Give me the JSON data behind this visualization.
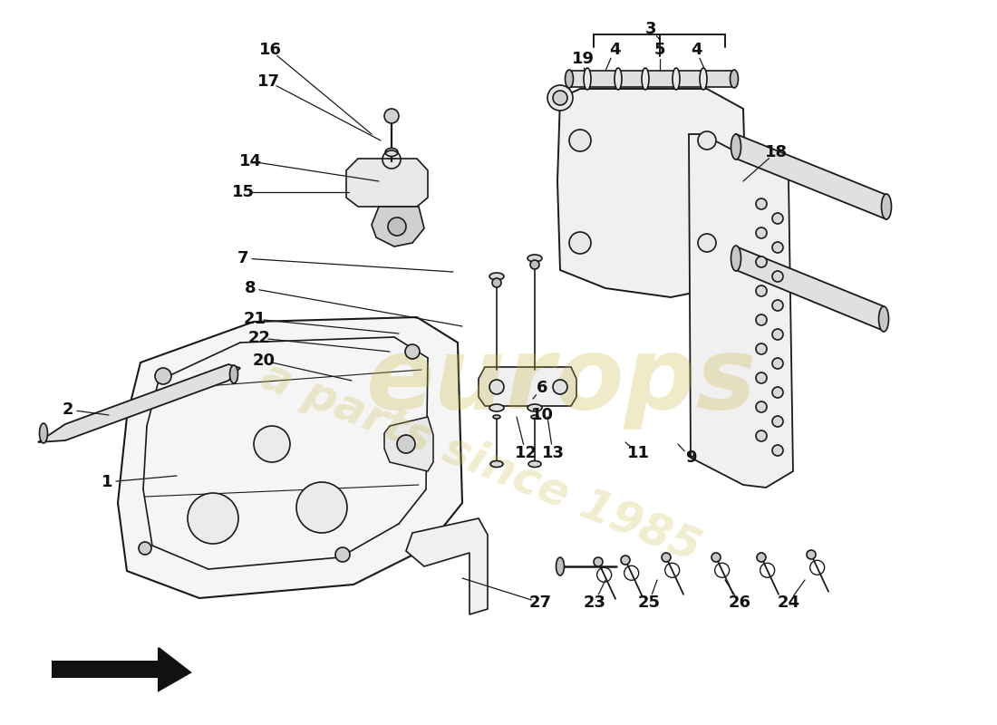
{
  "bg_color": "#ffffff",
  "line_color": "#1a1a1a",
  "label_color": "#111111",
  "wm_color1": "#c8b840",
  "wm_color2": "#c8b840",
  "label_fs": 13,
  "callouts": [
    [
      "1",
      118,
      532,
      195,
      525
    ],
    [
      "2",
      75,
      452,
      120,
      458
    ],
    [
      "3",
      718,
      32,
      728,
      44
    ],
    [
      "4",
      678,
      55,
      668,
      78
    ],
    [
      "5",
      728,
      55,
      728,
      78
    ],
    [
      "4",
      768,
      55,
      778,
      78
    ],
    [
      "6",
      598,
      428,
      588,
      440
    ],
    [
      "7",
      268,
      285,
      500,
      300
    ],
    [
      "8",
      276,
      318,
      510,
      360
    ],
    [
      "9",
      762,
      505,
      748,
      490
    ],
    [
      "10",
      598,
      458,
      586,
      448
    ],
    [
      "11",
      704,
      500,
      690,
      488
    ],
    [
      "12",
      580,
      500,
      570,
      460
    ],
    [
      "13",
      610,
      500,
      604,
      460
    ],
    [
      "14",
      276,
      178,
      418,
      200
    ],
    [
      "15",
      268,
      212,
      385,
      212
    ],
    [
      "16",
      298,
      55,
      410,
      148
    ],
    [
      "17",
      296,
      90,
      420,
      155
    ],
    [
      "18",
      856,
      168,
      820,
      200
    ],
    [
      "19",
      643,
      65,
      648,
      98
    ],
    [
      "20",
      291,
      398,
      388,
      420
    ],
    [
      "21",
      281,
      352,
      440,
      368
    ],
    [
      "22",
      286,
      373,
      430,
      388
    ],
    [
      "23",
      656,
      665,
      668,
      640
    ],
    [
      "24",
      870,
      665,
      888,
      640
    ],
    [
      "25",
      716,
      665,
      725,
      640
    ],
    [
      "26",
      816,
      665,
      800,
      640
    ],
    [
      "27",
      596,
      665,
      510,
      638
    ]
  ]
}
